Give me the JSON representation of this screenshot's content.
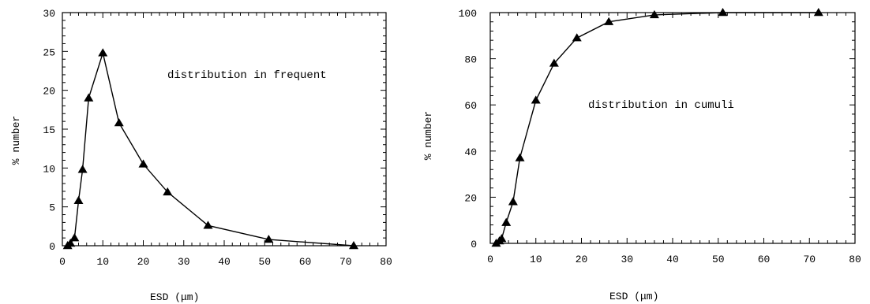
{
  "chart_data": [
    {
      "type": "line",
      "title": "",
      "annotation": "distribution in frequent",
      "xlabel": "ESD  (μm)",
      "ylabel": "%  number",
      "xlim": [
        0,
        80
      ],
      "ylim": [
        0,
        30
      ],
      "xticks": [
        0,
        10,
        20,
        30,
        40,
        50,
        60,
        70,
        80
      ],
      "yticks": [
        0,
        5,
        10,
        15,
        20,
        25,
        30
      ],
      "grid": false,
      "marker": "triangle",
      "series": [
        {
          "x": [
            1.3,
            2,
            3,
            4,
            5,
            6.5,
            10,
            14,
            20,
            26,
            36,
            51,
            72
          ],
          "values": [
            0,
            0.3,
            1,
            5.8,
            9.8,
            19,
            24.8,
            15.8,
            10.5,
            6.9,
            2.6,
            0.8,
            0
          ]
        }
      ]
    },
    {
      "type": "line",
      "title": "",
      "annotation": "distribution in cumuli",
      "xlabel": "ESD (μm)",
      "ylabel": "%  number",
      "xlim": [
        0,
        80
      ],
      "ylim": [
        0,
        100
      ],
      "xticks": [
        0,
        10,
        20,
        30,
        40,
        50,
        60,
        70,
        80
      ],
      "yticks": [
        0,
        20,
        40,
        60,
        80,
        100
      ],
      "grid": false,
      "marker": "triangle",
      "series": [
        {
          "x": [
            1.3,
            2,
            2.5,
            3.5,
            5,
            6.5,
            10,
            14,
            19,
            26,
            36,
            51,
            72
          ],
          "values": [
            0,
            1,
            2,
            9,
            18,
            37,
            62,
            78,
            89,
            96,
            99,
            100,
            100
          ]
        }
      ]
    }
  ]
}
